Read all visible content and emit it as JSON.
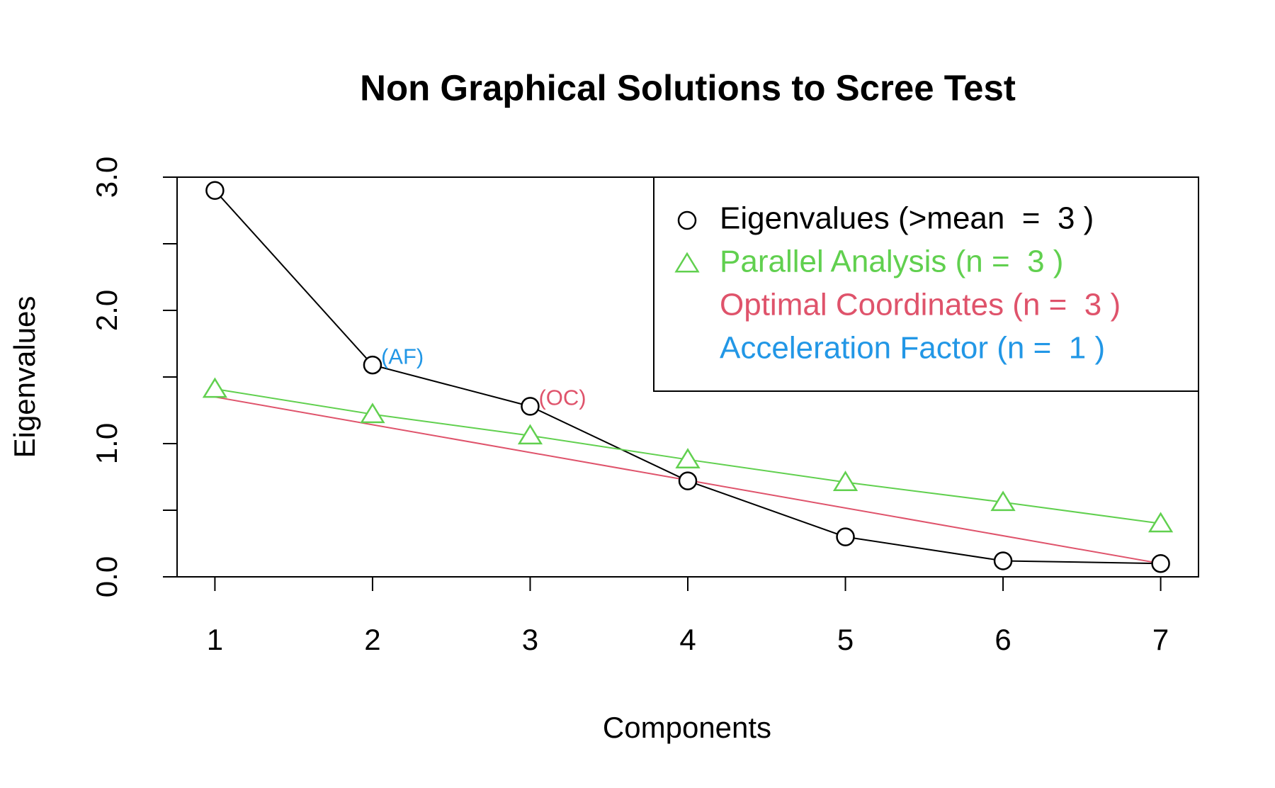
{
  "chart_data": {
    "type": "line",
    "title": "Non Graphical Solutions to Scree Test",
    "xlabel": "Components",
    "ylabel": "Eigenvalues",
    "x": [
      1,
      2,
      3,
      4,
      5,
      6,
      7
    ],
    "xlim": [
      0.76,
      7.24
    ],
    "xticks": [
      1,
      2,
      3,
      4,
      5,
      6,
      7
    ],
    "ylim": [
      0,
      3
    ],
    "yticks": [
      {
        "value": 0,
        "label": "0.0"
      },
      {
        "value": 1,
        "label": "1.0"
      },
      {
        "value": 2,
        "label": "2.0"
      },
      {
        "value": 3,
        "label": "3.0"
      }
    ],
    "yticks_minor": [
      0.5,
      1.5,
      2.5
    ],
    "series": [
      {
        "name": "Eigenvalues (>mean  =  3 )",
        "color": "#000000",
        "marker": "circle",
        "values": [
          2.9,
          1.59,
          1.28,
          0.72,
          0.3,
          0.12,
          0.1
        ]
      },
      {
        "name": "Parallel Analysis (n =  3 )",
        "color": "#61D04F",
        "marker": "triangle",
        "values": [
          1.41,
          1.22,
          1.06,
          0.88,
          0.71,
          0.56,
          0.4
        ]
      }
    ],
    "oc_line": {
      "name": "Optimal Coordinates (n =  3 )",
      "color": "#DF536B",
      "x": [
        1,
        7
      ],
      "values": [
        1.35,
        0.1
      ]
    },
    "af_legend": {
      "name": "Acceleration Factor (n =  1 )",
      "color": "#2297E6"
    },
    "annotations": [
      {
        "text": "(AF)",
        "x": 2,
        "y": 1.59,
        "color": "#2297E6"
      },
      {
        "text": "(OC)",
        "x": 3,
        "y": 1.28,
        "color": "#DF536B"
      }
    ],
    "legend": "topright"
  }
}
